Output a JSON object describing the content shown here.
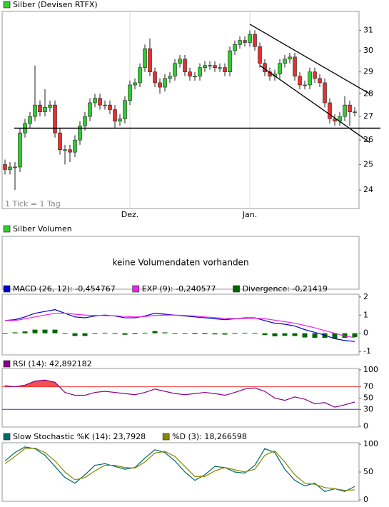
{
  "chart_data": [
    {
      "type": "candlestick",
      "title": "Silber (Devisen RTFX)",
      "note": "1 Tick = 1 Tag",
      "categories": [
        null,
        null,
        null,
        null,
        null,
        null,
        null,
        null,
        null,
        null,
        null,
        null,
        null,
        null,
        null,
        null,
        null,
        null,
        null,
        null,
        null,
        null,
        null,
        null,
        null,
        "Dez.",
        null,
        null,
        null,
        null,
        null,
        null,
        null,
        null,
        null,
        null,
        null,
        null,
        null,
        null,
        null,
        null,
        null,
        null,
        null,
        null,
        null,
        null,
        null,
        "Jan.",
        null,
        null,
        null,
        null,
        null,
        null,
        null,
        null,
        null,
        null,
        null,
        null,
        null,
        null,
        null,
        null,
        null,
        null,
        null,
        null,
        null
      ],
      "open": [
        25.0,
        24.8,
        24.9,
        24.9,
        26.3,
        26.7,
        27.0,
        27.5,
        27.2,
        27.4,
        27.5,
        26.3,
        25.6,
        25.6,
        25.5,
        26.0,
        26.6,
        27.0,
        27.6,
        27.8,
        27.5,
        27.5,
        27.3,
        26.8,
        26.9,
        27.7,
        28.4,
        28.5,
        29.2,
        30.1,
        29.0,
        28.5,
        28.3,
        28.7,
        28.8,
        29.4,
        29.6,
        29.0,
        28.8,
        28.8,
        29.2,
        29.3,
        29.3,
        29.2,
        29.2,
        29.0,
        30.0,
        30.3,
        30.5,
        30.4,
        30.8,
        30.2,
        29.4,
        29.0,
        28.8,
        28.9,
        29.4,
        29.6,
        29.7,
        28.8,
        28.4,
        28.4,
        29.0,
        28.7,
        28.5,
        27.6,
        26.9,
        26.8,
        27.0,
        27.5,
        27.2
      ],
      "high": [
        25.2,
        25.1,
        25.1,
        26.5,
        26.9,
        27.2,
        29.3,
        27.7,
        28.2,
        27.7,
        27.7,
        26.5,
        25.8,
        25.8,
        26.2,
        26.8,
        27.2,
        27.8,
        28.0,
        28.0,
        27.7,
        27.7,
        27.5,
        27.1,
        27.9,
        28.6,
        28.7,
        29.4,
        30.3,
        30.6,
        29.2,
        28.7,
        28.9,
        29.0,
        29.6,
        29.8,
        29.8,
        29.2,
        29.0,
        29.4,
        29.5,
        29.5,
        29.5,
        29.4,
        29.4,
        30.2,
        30.5,
        30.7,
        30.7,
        31.0,
        31.0,
        30.4,
        29.6,
        29.2,
        29.1,
        29.6,
        29.8,
        29.9,
        29.9,
        29.0,
        28.6,
        29.2,
        29.2,
        28.9,
        28.7,
        27.8,
        27.1,
        27.2,
        27.9,
        27.7,
        27.4
      ],
      "low": [
        24.6,
        24.6,
        24.0,
        24.7,
        26.1,
        26.5,
        26.8,
        27.0,
        27.0,
        27.2,
        26.1,
        25.4,
        25.0,
        25.1,
        25.3,
        25.8,
        26.4,
        26.8,
        27.4,
        27.3,
        27.3,
        27.1,
        26.5,
        26.6,
        26.7,
        27.5,
        28.2,
        28.3,
        29.0,
        28.8,
        28.3,
        28.0,
        28.1,
        28.5,
        28.6,
        29.2,
        28.8,
        28.6,
        28.6,
        28.6,
        29.0,
        29.1,
        29.0,
        29.0,
        28.8,
        28.8,
        29.8,
        30.1,
        30.2,
        30.2,
        30.0,
        29.2,
        28.8,
        28.6,
        28.6,
        28.7,
        29.2,
        29.4,
        28.6,
        28.2,
        28.2,
        28.2,
        28.5,
        28.3,
        27.4,
        26.7,
        26.6,
        26.6,
        26.8,
        26.6,
        27.0
      ],
      "close": [
        24.8,
        24.9,
        24.9,
        26.3,
        26.7,
        27.0,
        27.5,
        27.2,
        27.4,
        27.5,
        26.3,
        25.6,
        25.6,
        25.5,
        26.0,
        26.6,
        27.0,
        27.6,
        27.8,
        27.5,
        27.5,
        27.3,
        26.8,
        26.9,
        27.7,
        28.4,
        28.5,
        29.2,
        30.1,
        29.0,
        28.5,
        28.3,
        28.7,
        28.8,
        29.4,
        29.6,
        29.0,
        28.8,
        28.8,
        29.2,
        29.3,
        29.3,
        29.2,
        29.2,
        29.0,
        30.0,
        30.3,
        30.5,
        30.4,
        30.8,
        30.2,
        29.4,
        29.0,
        28.8,
        28.9,
        29.4,
        29.6,
        29.7,
        28.8,
        28.4,
        28.4,
        29.0,
        28.7,
        28.5,
        27.6,
        26.9,
        26.8,
        27.0,
        27.5,
        27.2,
        27.2
      ],
      "up_color": "#33cc33",
      "down_color": "#e83030",
      "ylim": [
        23.3,
        31.95
      ],
      "yticks": [
        24,
        25,
        26,
        27,
        28,
        29,
        30,
        31
      ],
      "log": true,
      "support": 26.5,
      "trendlines": [
        {
          "start": [
            49,
            31.3
          ],
          "end": [
            73,
            28.0
          ]
        },
        {
          "start": [
            51,
            29.3
          ],
          "end": [
            73,
            25.9
          ]
        }
      ]
    },
    {
      "type": "message",
      "title": "Silber Volumen",
      "color": "#33cc33",
      "message": "keine Volumendaten vorhanden"
    },
    {
      "type": "line",
      "x": [
        0,
        2,
        4,
        6,
        8,
        10,
        12,
        14,
        16,
        18,
        20,
        22,
        24,
        26,
        28,
        30,
        32,
        34,
        36,
        38,
        40,
        42,
        44,
        46,
        48,
        50,
        52,
        54,
        56,
        58,
        60,
        62,
        64,
        66,
        68,
        70
      ],
      "series": [
        {
          "name": "MACD (26, 12): -0,454767",
          "color": "#0000cc",
          "values": [
            0.7,
            0.75,
            0.9,
            1.1,
            1.2,
            1.3,
            1.1,
            0.9,
            0.85,
            0.95,
            1.0,
            0.95,
            0.85,
            0.85,
            0.95,
            1.1,
            1.05,
            1.0,
            0.95,
            0.9,
            0.85,
            0.8,
            0.75,
            0.8,
            0.85,
            0.85,
            0.7,
            0.55,
            0.5,
            0.4,
            0.2,
            0.05,
            -0.1,
            -0.3,
            -0.4,
            -0.45
          ]
        },
        {
          "name": "EXP (9): -0,240577",
          "color": "#ee22ee",
          "values": [
            0.7,
            0.7,
            0.8,
            0.9,
            1.0,
            1.1,
            1.1,
            1.05,
            1.0,
            0.98,
            0.97,
            0.96,
            0.93,
            0.9,
            0.92,
            0.98,
            1.0,
            1.0,
            0.98,
            0.95,
            0.9,
            0.86,
            0.82,
            0.81,
            0.82,
            0.83,
            0.8,
            0.72,
            0.64,
            0.55,
            0.43,
            0.3,
            0.15,
            0.0,
            -0.15,
            -0.24
          ]
        },
        {
          "name": "Divergence: -0,21419",
          "color": "#006600",
          "style": "bar",
          "values": [
            0,
            0.05,
            0.1,
            0.2,
            0.2,
            0.2,
            0,
            -0.15,
            -0.15,
            -0.03,
            0.03,
            -0.01,
            -0.08,
            -0.05,
            0.03,
            0.12,
            0.05,
            0,
            -0.03,
            -0.05,
            -0.05,
            -0.06,
            -0.07,
            -0.01,
            0.03,
            0.02,
            -0.1,
            -0.17,
            -0.14,
            -0.15,
            -0.23,
            -0.25,
            -0.25,
            -0.3,
            -0.25,
            -0.21
          ]
        }
      ],
      "ylim": [
        -1.19,
        2.15
      ],
      "yticks": [
        -1,
        0,
        1,
        2
      ]
    },
    {
      "type": "line",
      "x": [
        0,
        2,
        4,
        6,
        8,
        10,
        12,
        14,
        16,
        18,
        20,
        22,
        24,
        26,
        28,
        30,
        32,
        34,
        36,
        38,
        40,
        42,
        44,
        46,
        48,
        50,
        52,
        54,
        56,
        58,
        60,
        62,
        64,
        66,
        68,
        70
      ],
      "series": [
        {
          "name": "RSI (14): 42,892182",
          "color": "#880088",
          "values": [
            72,
            70,
            73,
            80,
            82,
            78,
            60,
            55,
            55,
            60,
            62,
            60,
            58,
            56,
            60,
            66,
            62,
            58,
            56,
            58,
            60,
            58,
            55,
            60,
            66,
            68,
            62,
            50,
            46,
            52,
            48,
            40,
            42,
            34,
            38,
            43
          ]
        }
      ],
      "levels": [
        {
          "value": 70,
          "color": "#ee3333",
          "fill": true
        },
        {
          "value": 30,
          "color": "#3333cc"
        }
      ],
      "ylim": [
        -1.3,
        102.5
      ],
      "yticks": [
        0,
        30,
        50,
        70,
        100
      ]
    },
    {
      "type": "line",
      "x": [
        0,
        2,
        4,
        6,
        8,
        10,
        12,
        14,
        16,
        18,
        20,
        22,
        24,
        26,
        28,
        30,
        32,
        34,
        36,
        38,
        40,
        42,
        44,
        46,
        48,
        50,
        52,
        54,
        56,
        58,
        60,
        62,
        64,
        66,
        68,
        70
      ],
      "series": [
        {
          "name": "Slow Stochastic %K (14): 23,7928",
          "color": "#006666",
          "values": [
            70,
            85,
            95,
            92,
            80,
            60,
            40,
            30,
            45,
            62,
            65,
            60,
            55,
            58,
            75,
            90,
            85,
            70,
            50,
            35,
            45,
            60,
            58,
            50,
            48,
            62,
            92,
            85,
            55,
            35,
            25,
            30,
            15,
            20,
            15,
            24
          ]
        },
        {
          "name": "%D (3): 18,266598",
          "color": "#888800",
          "values": [
            65,
            78,
            92,
            93,
            85,
            70,
            50,
            36,
            40,
            52,
            62,
            62,
            58,
            57,
            68,
            84,
            87,
            78,
            60,
            42,
            42,
            52,
            58,
            54,
            50,
            55,
            80,
            88,
            68,
            45,
            30,
            28,
            22,
            20,
            17,
            18
          ]
        }
      ],
      "ylim": [
        -2.6,
        102.6
      ],
      "yticks": [
        0,
        50,
        100
      ]
    }
  ]
}
